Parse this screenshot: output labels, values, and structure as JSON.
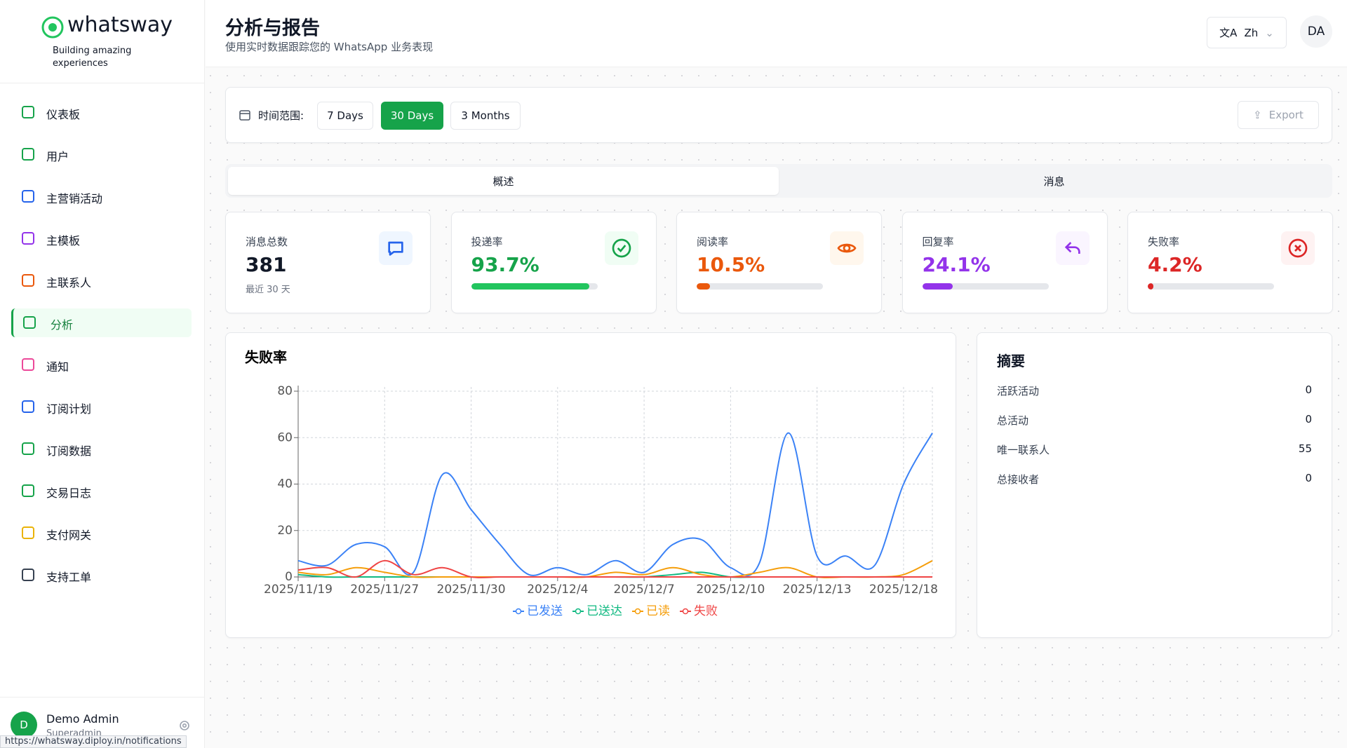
{
  "sidebar": {
    "brand": "whatsway",
    "tagline": "Building amazing experiences",
    "menu": [
      "仪表板",
      "用户",
      "主营销活动",
      "主模板",
      "主联系人",
      "分析",
      "通知",
      "订阅计划",
      "订阅数据",
      "交易日志",
      "支付网关",
      "支持工单"
    ],
    "user": {
      "initial": "D",
      "name": "Demo Admin",
      "role": "Superadmin"
    },
    "status_url": "https://whatsway.diploy.in/notifications"
  },
  "header": {
    "title": "分析与报告",
    "subtitle": "使用实时数据跟踪您的 WhatsApp 业务表现",
    "language": "Zh",
    "avatar": "DA"
  },
  "filters": {
    "label": "时间范围:",
    "options": [
      "7 Days",
      "30 Days",
      "3 Months"
    ],
    "export": "Export"
  },
  "tabs": [
    "概述",
    "消息"
  ],
  "stats": [
    {
      "label": "消息总数",
      "value": 381,
      "note": "最近 30 天"
    },
    {
      "label": "投递率",
      "value": 93.7,
      "value_label": "93.7%"
    },
    {
      "label": "阅读率",
      "value": 10.5,
      "value_label": "10.5%"
    },
    {
      "label": "回复率",
      "value": 24.1,
      "value_label": "24.1%"
    },
    {
      "label": "失败率",
      "value": 4.2,
      "value_label": "4.2%"
    }
  ],
  "chart": {
    "type": "line",
    "title": "失败率",
    "categories": [
      "2025/11/19",
      null,
      null,
      "2025/11/27",
      null,
      null,
      "2025/11/30",
      null,
      null,
      "2025/12/4",
      null,
      null,
      "2025/12/7",
      null,
      null,
      "2025/12/10",
      null,
      null,
      "2025/12/13",
      null,
      null,
      "2025/12/18",
      null
    ],
    "series": [
      {
        "name": "已发送",
        "color": "#3b82f6",
        "values": [
          7,
          5,
          14,
          13,
          2,
          44,
          29,
          14,
          1,
          4,
          1,
          7,
          2,
          14,
          16,
          4,
          6,
          62,
          9,
          9,
          5,
          40,
          62
        ]
      },
      {
        "name": "已送达",
        "color": "#10b981",
        "values": [
          1,
          0,
          0,
          0,
          0,
          0,
          0,
          0,
          0,
          0,
          0,
          0,
          0,
          1,
          2,
          0,
          0,
          0,
          0,
          0,
          0,
          0,
          0
        ]
      },
      {
        "name": "已读",
        "color": "#f59e0b",
        "values": [
          2,
          1,
          4,
          2,
          0,
          0,
          0,
          0,
          0,
          0,
          0,
          2,
          1,
          4,
          1,
          0,
          2,
          4,
          0,
          0,
          0,
          1,
          7
        ]
      },
      {
        "name": "失败",
        "color": "#ef4444",
        "values": [
          3,
          4,
          0,
          7,
          1,
          4,
          0,
          0,
          0,
          0,
          0,
          0,
          0,
          0,
          0,
          0,
          0,
          0,
          0,
          0,
          0,
          0,
          0
        ]
      }
    ],
    "ylim": [
      0,
      80
    ],
    "yticks": [
      0,
      20,
      40,
      60,
      80
    ],
    "grid": true
  },
  "summary": {
    "title": "摘要",
    "rows": [
      [
        "活跃活动",
        0
      ],
      [
        "总活动",
        0
      ],
      [
        "唯一联系人",
        55
      ],
      [
        "总接收者",
        0
      ]
    ]
  }
}
